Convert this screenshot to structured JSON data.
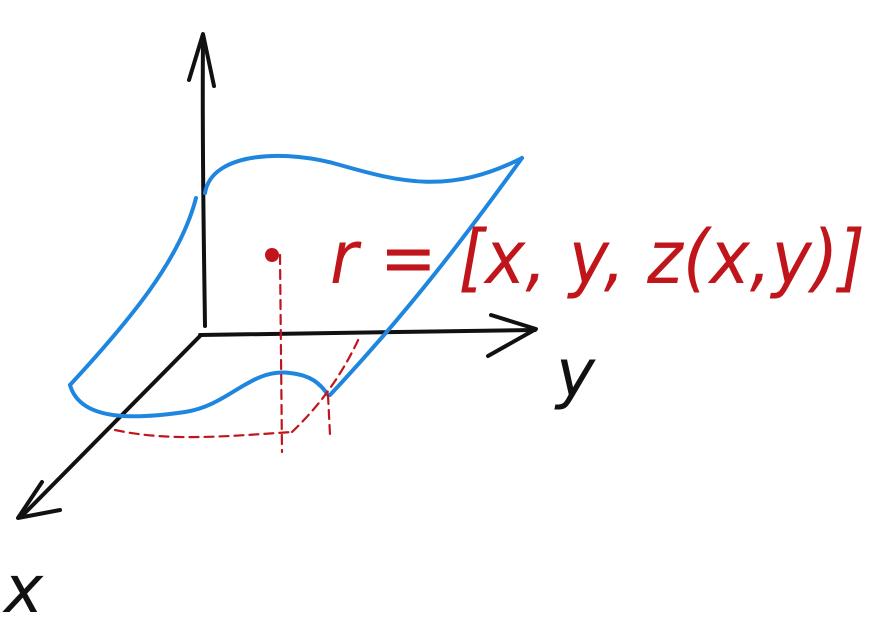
{
  "diagram": {
    "formula_text": "r = [x, y, z(x,y)]",
    "axis_x_label": "x",
    "axis_y_label": "y",
    "colors": {
      "axes": "#111111",
      "surface": "#1f86e0",
      "annotation": "#c0161b"
    }
  }
}
